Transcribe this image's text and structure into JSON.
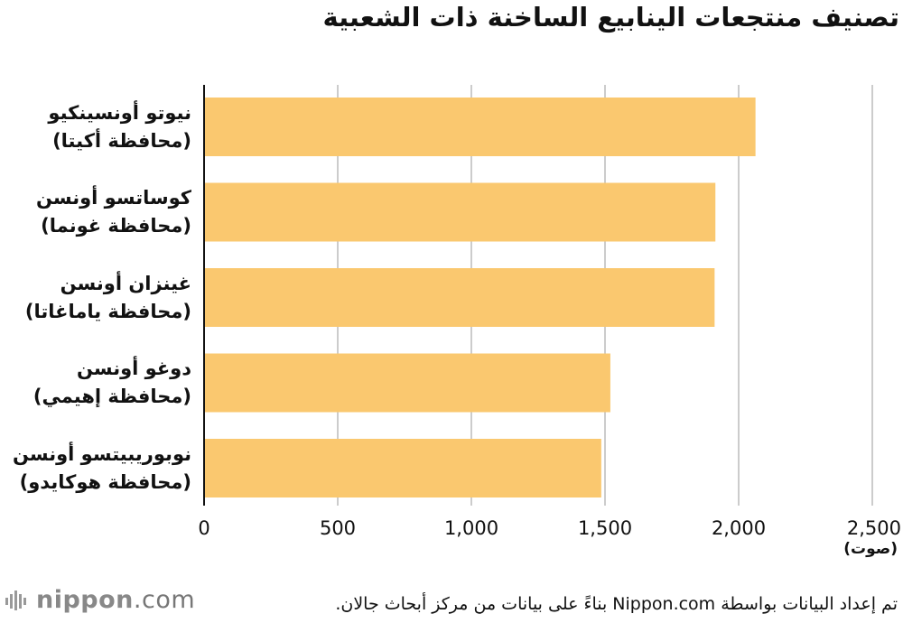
{
  "title": "تصنيف منتجعات الينابيع الساخنة ذات الشعبية",
  "chart_data": {
    "type": "bar",
    "orientation": "horizontal",
    "categories": [
      {
        "name": "نيوتو أونسينكيو",
        "sub": "(محافظة أكيتا)"
      },
      {
        "name": "كوساتسو أونسن",
        "sub": "(محافظة غونما)"
      },
      {
        "name": "غينزان أونسن",
        "sub": "(محافظة ياماغاتا)"
      },
      {
        "name": "دوغو أونسن",
        "sub": "(محافظة إهيمي)"
      },
      {
        "name": "نوبوريبيتسو أونسن",
        "sub": "(محافظة هوكايدو)"
      }
    ],
    "values": [
      2063,
      1913,
      1910,
      1520,
      1486
    ],
    "xlim": [
      0,
      2500
    ],
    "xticks": [
      0,
      500,
      1000,
      1500,
      2000,
      2500
    ],
    "xtick_labels": [
      "0",
      "500",
      "1,000",
      "1,500",
      "2,000",
      "2,500"
    ],
    "unit": "(صوت)",
    "grid": true,
    "bar_color": "#fac86f",
    "grid_color": "#cccccc",
    "axis_color": "#111111"
  },
  "footer": {
    "logo_bold": "nippon",
    "logo_light": ".com",
    "source": "تم إعداد البيانات بواسطة Nippon.com بناءً على بيانات من مركز أبحاث جالان."
  }
}
